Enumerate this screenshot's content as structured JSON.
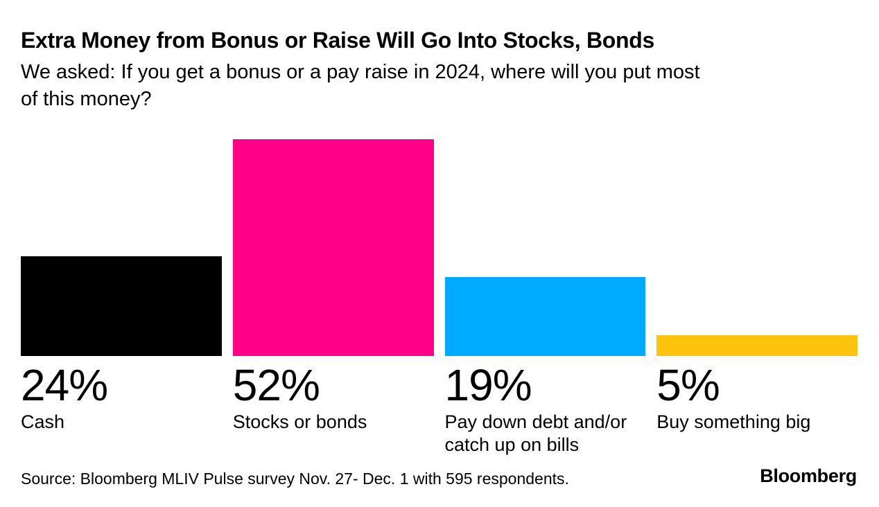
{
  "header": {
    "title": "Extra Money from Bonus or Raise Will Go Into Stocks, Bonds",
    "subtitle_lines": [
      "We asked: If you get a bonus or a pay raise in 2024, where will you put most",
      "of this money?"
    ]
  },
  "chart_data": {
    "type": "bar",
    "orientation": "vertical",
    "title": "Extra Money from Bonus or Raise Will Go Into Stocks, Bonds",
    "subtitle": "We asked: If you get a bonus or a pay raise in 2024, where will you put most of this money?",
    "categories": [
      "Cash",
      "Stocks or bonds",
      "Pay down debt and/or catch up on bills",
      "Buy something big"
    ],
    "values": [
      24,
      52,
      19,
      5
    ],
    "value_labels": [
      "24%",
      "52%",
      "19%",
      "5%"
    ],
    "colors": [
      "#000000",
      "#FF0087",
      "#00AAFF",
      "#FDC40D"
    ],
    "ylim": [
      0,
      52
    ],
    "grid": false,
    "legend": "none",
    "axis_labels_shown": false
  },
  "footer": {
    "source": "Source: Bloomberg MLIV Pulse survey Nov. 27- Dec. 1 with 595 respondents.",
    "logo": "Bloomberg"
  }
}
